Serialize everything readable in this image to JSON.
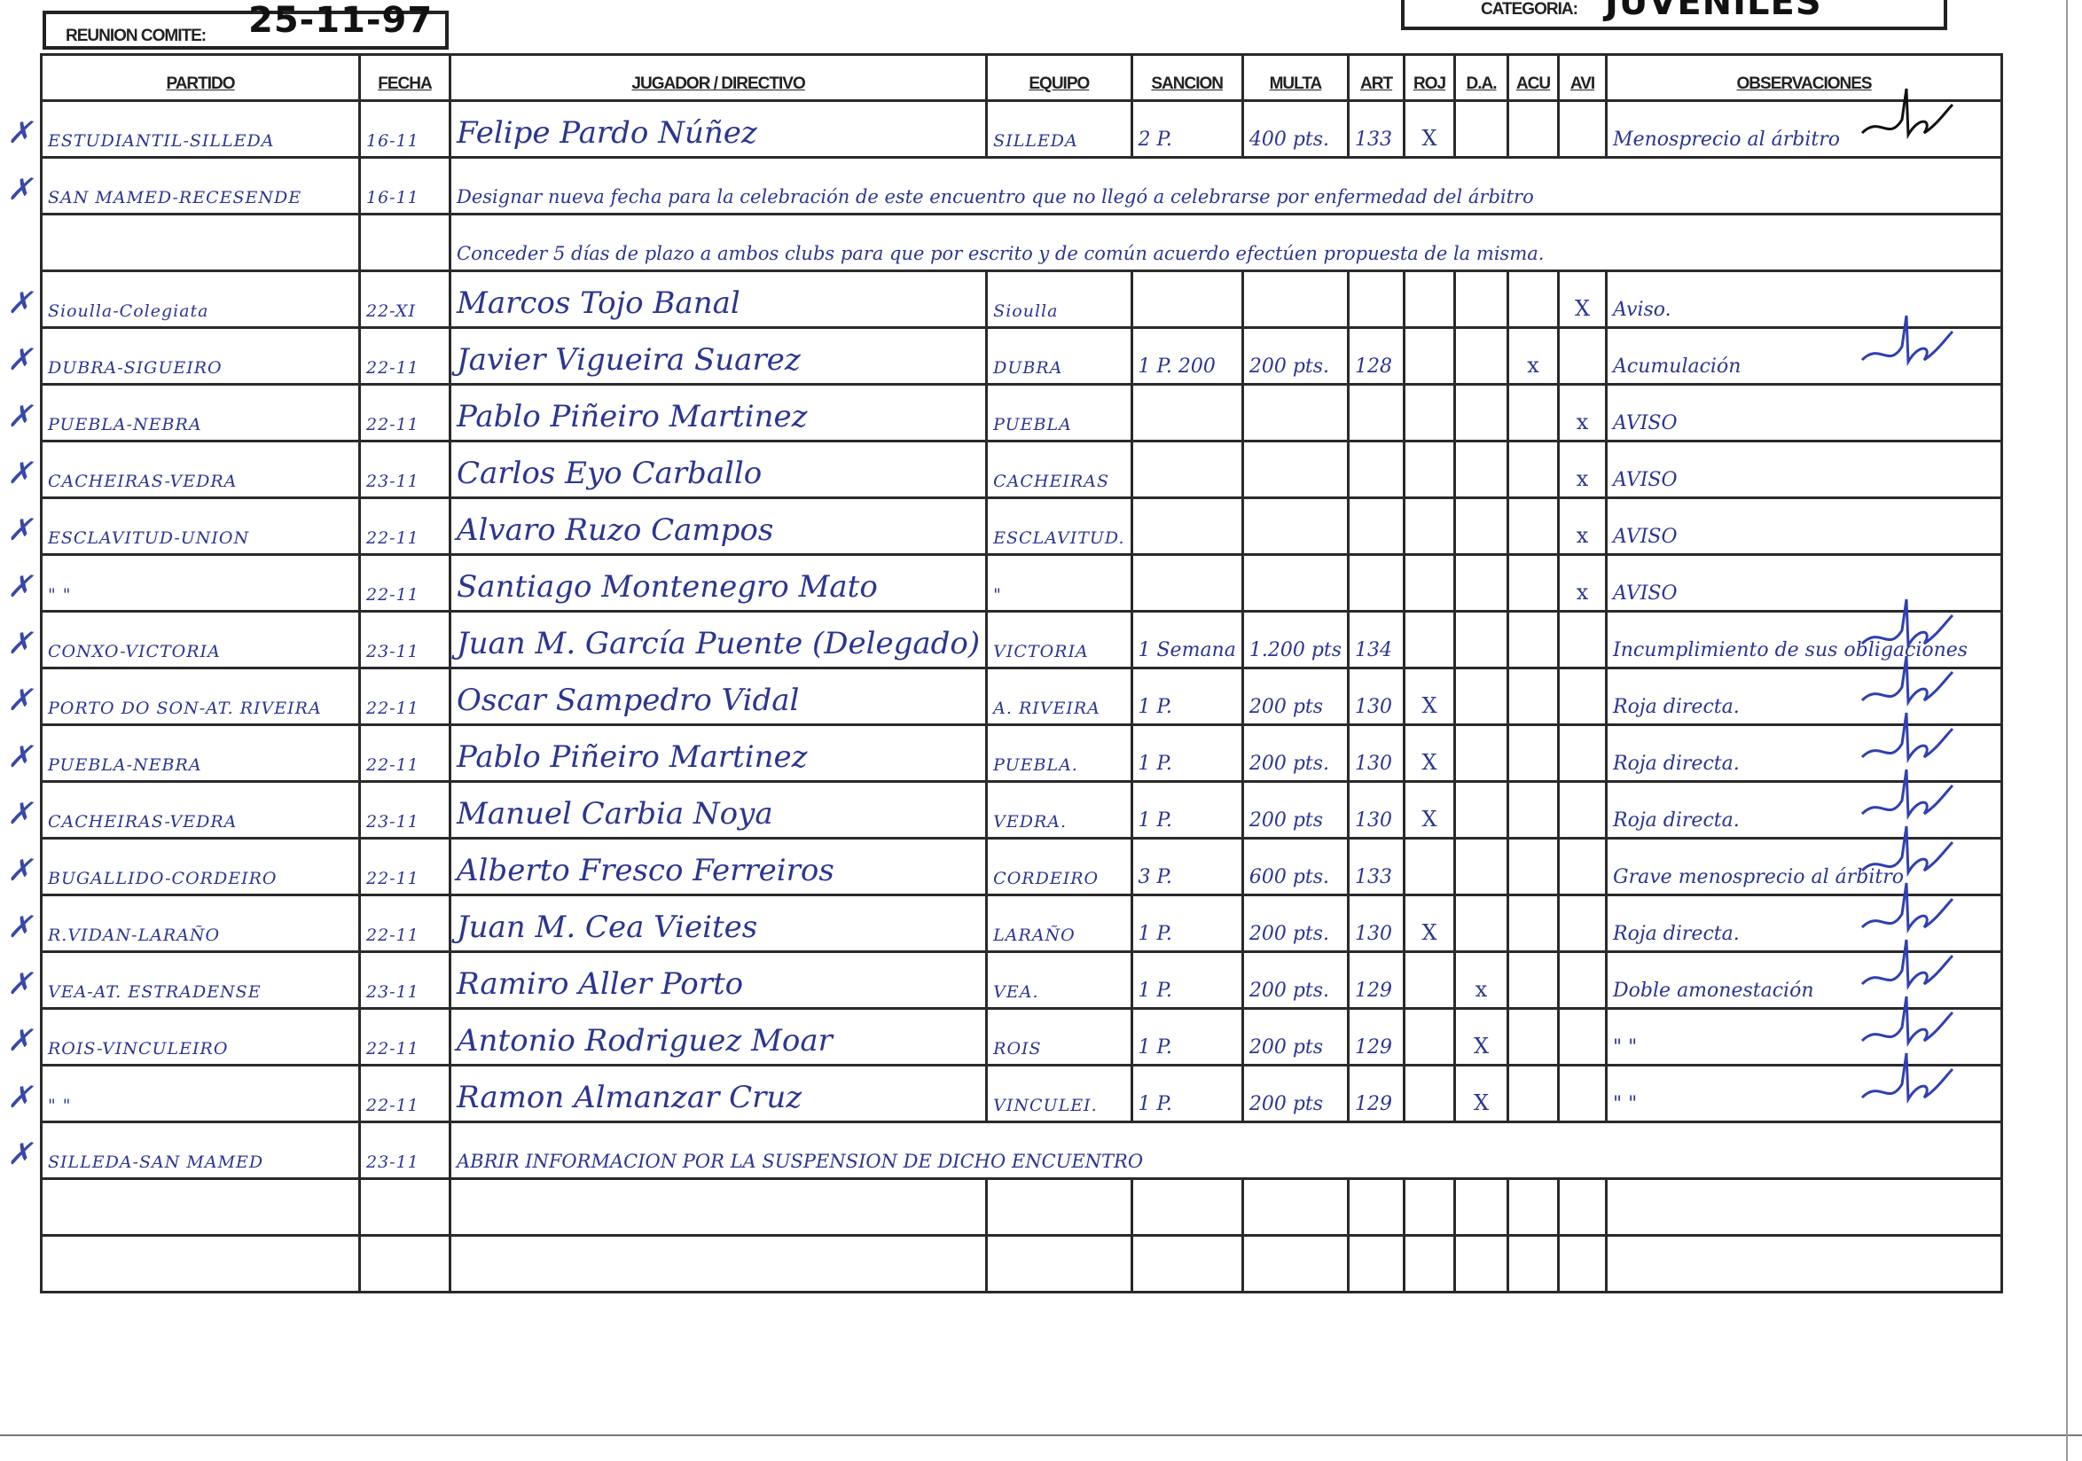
{
  "meeting": {
    "label": "REUNION COMITE:",
    "date": "25-11-97"
  },
  "category": {
    "label": "CATEGORIA:",
    "value": "JUVENILES"
  },
  "columns": [
    "PARTIDO",
    "FECHA",
    "JUGADOR / DIRECTIVO",
    "EQUIPO",
    "SANCION",
    "MULTA",
    "ART",
    "ROJ",
    "D.A.",
    "ACU",
    "AVI",
    "OBSERVACIONES"
  ],
  "ink_color": "#2b3590",
  "rows": [
    {
      "partido": "ESTUDIANTIL-SILLEDA",
      "fecha": "16-11",
      "jugador": "Felipe Pardo Núñez",
      "equipo": "SILLEDA",
      "sancion": "2 P.",
      "multa": "400 pts.",
      "art": "133",
      "roj": "X",
      "da": "",
      "acu": "",
      "avi": "",
      "observaciones": "Menosprecio al árbitro",
      "signed": true
    },
    {
      "partido": "SAN MAMED-RECESENDE",
      "fecha": "16-11",
      "note": "Designar nueva fecha para la celebración de este encuentro que no llegó a celebrarse por enfermedad del árbitro"
    },
    {
      "partido": "",
      "fecha": "",
      "note": "Conceder 5 días de plazo a ambos clubs para que por escrito y de común acuerdo efectúen propuesta de la misma."
    },
    {
      "partido": "Sioulla-Colegiata",
      "fecha": "22-XI",
      "jugador": "Marcos Tojo Banal",
      "equipo": "Sioulla",
      "sancion": "",
      "multa": "",
      "art": "",
      "roj": "",
      "da": "",
      "acu": "",
      "avi": "X",
      "observaciones": "Aviso."
    },
    {
      "partido": "DUBRA-SIGUEIRO",
      "fecha": "22-11",
      "jugador": "Javier Vigueira Suarez",
      "equipo": "DUBRA",
      "sancion": "1 P. 200",
      "multa": "200 pts.",
      "art": "128",
      "roj": "",
      "da": "",
      "acu": "x",
      "avi": "",
      "observaciones": "Acumulación",
      "signed": true
    },
    {
      "partido": "PUEBLA-NEBRA",
      "fecha": "22-11",
      "jugador": "Pablo Piñeiro Martinez",
      "equipo": "PUEBLA",
      "sancion": "",
      "multa": "",
      "art": "",
      "roj": "",
      "da": "",
      "acu": "",
      "avi": "x",
      "observaciones": "AVISO"
    },
    {
      "partido": "CACHEIRAS-VEDRA",
      "fecha": "23-11",
      "jugador": "Carlos Eyo Carballo",
      "equipo": "CACHEIRAS",
      "sancion": "",
      "multa": "",
      "art": "",
      "roj": "",
      "da": "",
      "acu": "",
      "avi": "x",
      "observaciones": "AVISO"
    },
    {
      "partido": "ESCLAVITUD-UNION",
      "fecha": "22-11",
      "jugador": "Alvaro Ruzo Campos",
      "equipo": "ESCLAVITUD.",
      "sancion": "",
      "multa": "",
      "art": "",
      "roj": "",
      "da": "",
      "acu": "",
      "avi": "x",
      "observaciones": "AVISO"
    },
    {
      "partido": "\"          \"",
      "fecha": "22-11",
      "jugador": "Santiago Montenegro Mato",
      "equipo": "\"",
      "sancion": "",
      "multa": "",
      "art": "",
      "roj": "",
      "da": "",
      "acu": "",
      "avi": "x",
      "observaciones": "AVISO"
    },
    {
      "partido": "CONXO-VICTORIA",
      "fecha": "23-11",
      "jugador": "Juan M. García Puente (Delegado)",
      "equipo": "VICTORIA",
      "sancion": "1 Semana",
      "multa": "1.200 pts",
      "art": "134",
      "roj": "",
      "da": "",
      "acu": "",
      "avi": "",
      "observaciones": "Incumplimiento de sus obligaciones",
      "signed": true
    },
    {
      "partido": "PORTO DO SON-AT. RIVEIRA",
      "fecha": "22-11",
      "jugador": "Oscar Sampedro Vidal",
      "equipo": "A. RIVEIRA",
      "sancion": "1 P.",
      "multa": "200 pts",
      "art": "130",
      "roj": "X",
      "da": "",
      "acu": "",
      "avi": "",
      "observaciones": "Roja directa.",
      "signed": true
    },
    {
      "partido": "PUEBLA-NEBRA",
      "fecha": "22-11",
      "jugador": "Pablo Piñeiro Martinez",
      "equipo": "PUEBLA.",
      "sancion": "1 P.",
      "multa": "200 pts.",
      "art": "130",
      "roj": "X",
      "da": "",
      "acu": "",
      "avi": "",
      "observaciones": "Roja directa.",
      "signed": true
    },
    {
      "partido": "CACHEIRAS-VEDRA",
      "fecha": "23-11",
      "jugador": "Manuel Carbia Noya",
      "equipo": "VEDRA.",
      "sancion": "1 P.",
      "multa": "200 pts",
      "art": "130",
      "roj": "X",
      "da": "",
      "acu": "",
      "avi": "",
      "observaciones": "Roja directa.",
      "signed": true
    },
    {
      "partido": "BUGALLIDO-CORDEIRO",
      "fecha": "22-11",
      "jugador": "Alberto Fresco Ferreiros",
      "equipo": "CORDEIRO",
      "sancion": "3 P.",
      "multa": "600 pts.",
      "art": "133",
      "roj": "",
      "da": "",
      "acu": "",
      "avi": "",
      "observaciones": "Grave menosprecio al árbitro",
      "signed": true
    },
    {
      "partido": "R.VIDAN-LARAÑO",
      "fecha": "22-11",
      "jugador": "Juan M. Cea Vieites",
      "equipo": "LARAÑO",
      "sancion": "1 P.",
      "multa": "200 pts.",
      "art": "130",
      "roj": "X",
      "da": "",
      "acu": "",
      "avi": "",
      "observaciones": "Roja directa.",
      "signed": true
    },
    {
      "partido": "VEA-AT. ESTRADENSE",
      "fecha": "23-11",
      "jugador": "Ramiro Aller Porto",
      "equipo": "VEA.",
      "sancion": "1 P.",
      "multa": "200 pts.",
      "art": "129",
      "roj": "",
      "da": "x",
      "acu": "",
      "avi": "",
      "observaciones": "Doble amonestación",
      "signed": true
    },
    {
      "partido": "ROIS-VINCULEIRO",
      "fecha": "22-11",
      "jugador": "Antonio Rodriguez Moar",
      "equipo": "ROIS",
      "sancion": "1 P.",
      "multa": "200 pts",
      "art": "129",
      "roj": "",
      "da": "X",
      "acu": "",
      "avi": "",
      "observaciones": "\"          \"",
      "signed": true
    },
    {
      "partido": "\"          \"",
      "fecha": "22-11",
      "jugador": "Ramon Almanzar Cruz",
      "equipo": "VINCULEI.",
      "sancion": "1 P.",
      "multa": "200 pts",
      "art": "129",
      "roj": "",
      "da": "X",
      "acu": "",
      "avi": "",
      "observaciones": "\"          \"",
      "signed": true
    },
    {
      "partido": "SILLEDA-SAN MAMED",
      "fecha": "23-11",
      "note": "ABRIR INFORMACION POR LA SUSPENSION DE DICHO ENCUENTRO"
    },
    {
      "partido": "",
      "fecha": "",
      "jugador": "",
      "equipo": "",
      "sancion": "",
      "multa": "",
      "art": "",
      "roj": "",
      "da": "",
      "acu": "",
      "avi": "",
      "observaciones": ""
    },
    {
      "partido": "",
      "fecha": "",
      "jugador": "",
      "equipo": "",
      "sancion": "",
      "multa": "",
      "art": "",
      "roj": "",
      "da": "",
      "acu": "",
      "avi": "",
      "observaciones": ""
    }
  ]
}
